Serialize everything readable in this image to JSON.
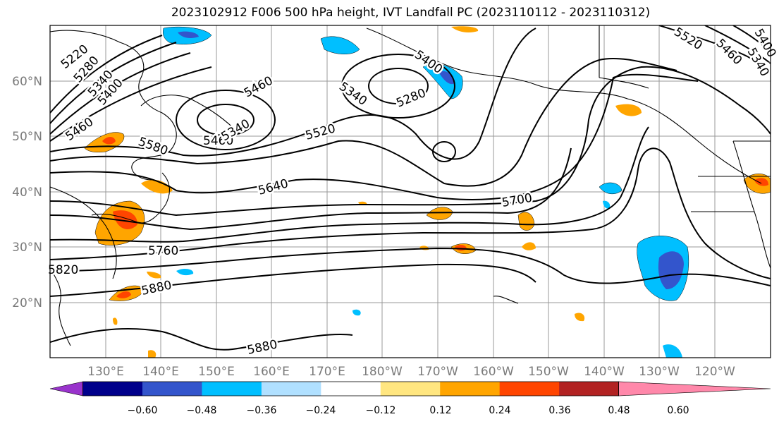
{
  "title": "2023102912 F006 500 hPa height, IVT Landfall PC (2023110112 - 2023110312)",
  "map": {
    "lat_labels": [
      "60°N",
      "50°N",
      "40°N",
      "30°N",
      "20°N"
    ],
    "lon_labels": [
      "130°E",
      "140°E",
      "150°E",
      "160°E",
      "170°E",
      "180°W",
      "170°W",
      "160°W",
      "150°W",
      "140°W",
      "130°W",
      "120°W"
    ],
    "contour_labels": [
      "5220",
      "5280",
      "5340",
      "5400",
      "5460",
      "5460",
      "5340",
      "5280",
      "5340",
      "5400",
      "5520",
      "5520",
      "5580",
      "5460",
      "5340",
      "5640",
      "5700",
      "5760",
      "5820",
      "5880",
      "5880",
      "5340",
      "5460",
      "5520",
      "5400"
    ]
  },
  "colorbar": {
    "ticks": [
      "−0.60",
      "−0.48",
      "−0.36",
      "−0.24",
      "−0.12",
      "0.12",
      "0.24",
      "0.36",
      "0.48",
      "0.60"
    ],
    "colors": [
      "#9933cc",
      "#00008b",
      "#3355cc",
      "#00bfff",
      "#b0e0ff",
      "#ffffff",
      "#ffe680",
      "#ffa500",
      "#ff4500",
      "#b22222",
      "#ff88aa"
    ]
  }
}
